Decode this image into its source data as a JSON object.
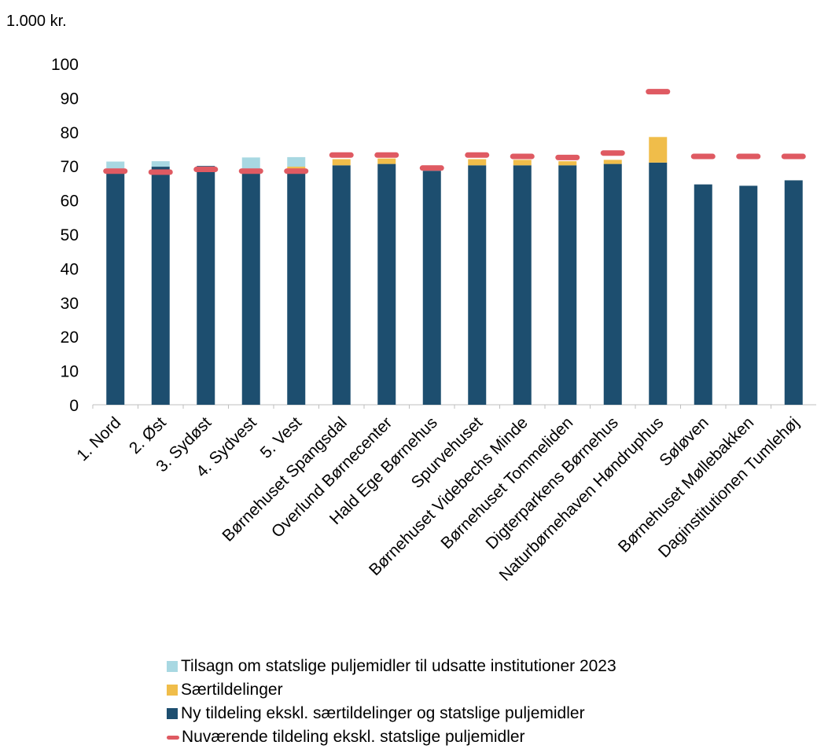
{
  "chart_data": {
    "type": "bar",
    "unit_label": "1.000 kr.",
    "categories": [
      "1. Nord",
      "2. Øst",
      "3. Sydøst",
      "4. Sydvest",
      "5. Vest",
      "Børnehuset Spangsdal",
      "Overlund Børnecenter",
      "Hald Ege Børnehus",
      "Spurvehuset",
      "Børnehuset Videbechs Minde",
      "Børnehuset Tommeliden",
      "Digterparkens Børnehus",
      "Naturbørnehaven Høndruphus",
      "Søløven",
      "Børnehuset Møllebakken",
      "Daginstitutionen Tumlehøj"
    ],
    "ylim": [
      0,
      100
    ],
    "yticks": [
      0,
      10,
      20,
      30,
      40,
      50,
      60,
      70,
      80,
      90,
      100
    ],
    "grid": false,
    "legend_position": "bottom",
    "series": [
      {
        "name": "Ny tildeling ekskl. særtildelinger og statslige puljemidler",
        "kind": "stacked-bar",
        "color": "#1d4e6f",
        "values": [
          68.5,
          69.8,
          70.0,
          68.5,
          68.5,
          70.2,
          70.6,
          68.6,
          70.2,
          70.2,
          70.2,
          70.6,
          71.0,
          64.6,
          64.2,
          65.8
        ]
      },
      {
        "name": "Særtildelinger",
        "kind": "stacked-bar",
        "color": "#f0bd4a",
        "values": [
          0,
          0,
          0,
          0,
          1.3,
          1.8,
          1.6,
          0,
          1.8,
          1.6,
          1.2,
          1.2,
          7.5,
          0,
          0,
          0
        ]
      },
      {
        "name": "Tilsagn om statslige puljemidler til udsatte institutioner 2023",
        "kind": "stacked-bar",
        "color": "#a8d8e2",
        "values": [
          2.8,
          1.6,
          0,
          4.0,
          2.8,
          0,
          0,
          0,
          0,
          0,
          0,
          0,
          0,
          0,
          0,
          0
        ]
      },
      {
        "name": "Nuværende tildeling ekskl. statslige puljemidler",
        "kind": "marker",
        "color": "#df5a62",
        "values": [
          68.5,
          68.2,
          69.0,
          68.5,
          68.5,
          73.2,
          73.2,
          69.4,
          73.2,
          72.8,
          72.5,
          73.8,
          91.8,
          72.8,
          72.8,
          72.8
        ]
      }
    ],
    "legend_order": [
      "Tilsagn om statslige puljemidler til udsatte institutioner 2023",
      "Særtildelinger",
      "Ny tildeling ekskl. særtildelinger og statslige puljemidler",
      "Nuværende tildeling ekskl. statslige puljemidler"
    ]
  }
}
